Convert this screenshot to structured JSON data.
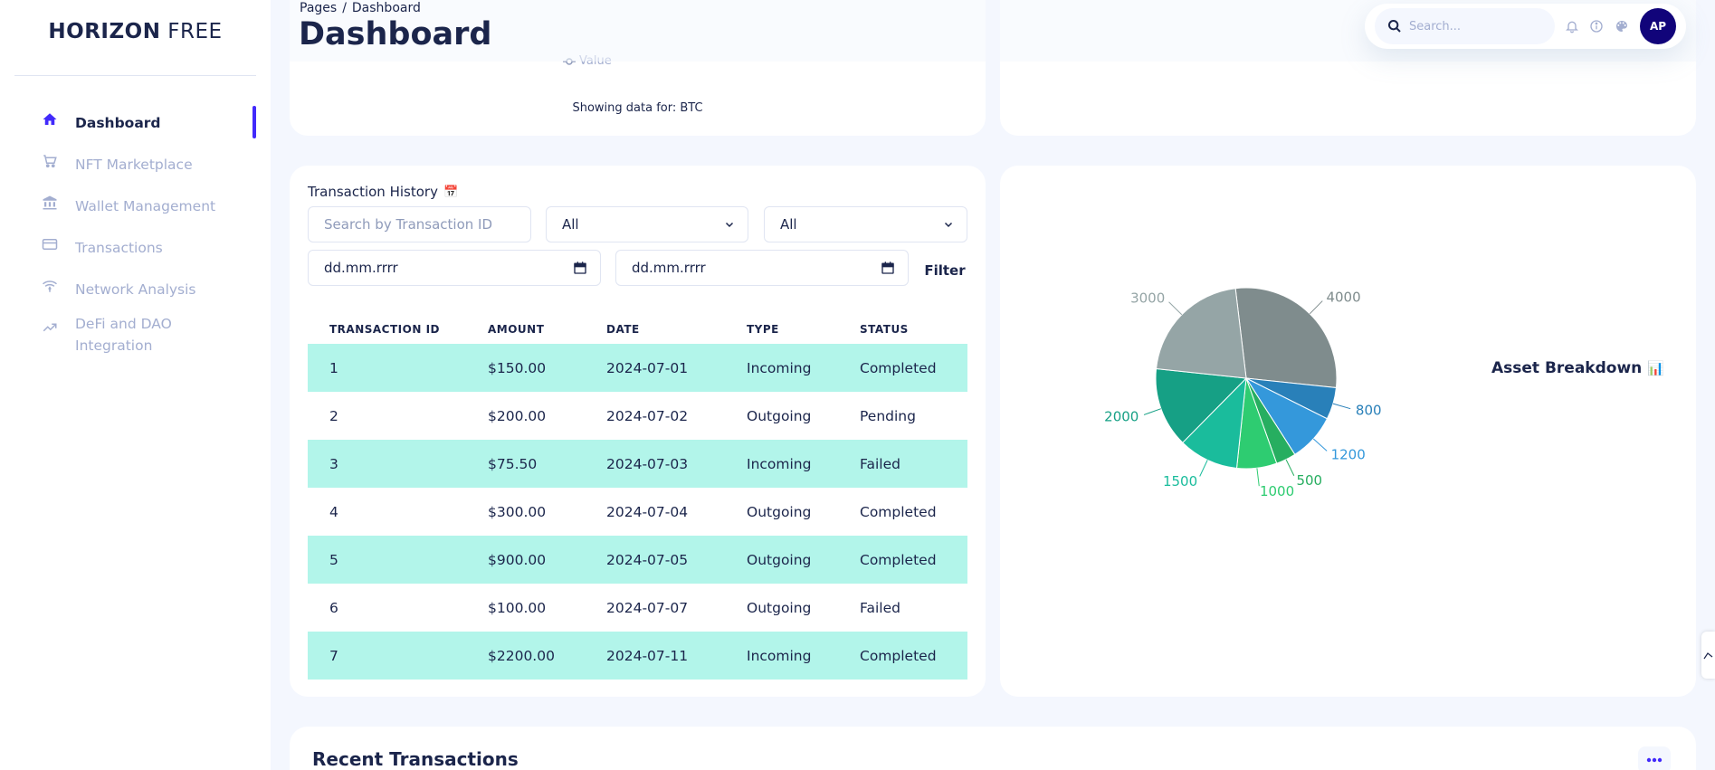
{
  "sidebar": {
    "logo_bold": "HORIZON",
    "logo_light": "FREE",
    "items": [
      {
        "label": "Dashboard",
        "icon": "home-icon",
        "active": true
      },
      {
        "label": "NFT Marketplace",
        "icon": "cart-icon",
        "active": false
      },
      {
        "label": "Wallet Management",
        "icon": "bank-icon",
        "active": false
      },
      {
        "label": "Transactions",
        "icon": "card-icon",
        "active": false
      },
      {
        "label": "Network Analysis",
        "icon": "wifi-icon",
        "active": false
      },
      {
        "label": "DeFi and DAO Integration",
        "icon": "trending-up-icon",
        "active": false
      }
    ]
  },
  "header": {
    "breadcrumb_root": "Pages",
    "breadcrumb_sep": "/",
    "breadcrumb_current": "Dashboard",
    "title": "Dashboard",
    "search_placeholder": "Search...",
    "avatar_initials": "AP"
  },
  "top_left_card": {
    "legend_label": "Value",
    "showing_data": "Showing data for: BTC"
  },
  "transaction_history": {
    "title": "Transaction History",
    "title_emoji": "📅",
    "search_placeholder": "Search by Transaction ID",
    "type_filter": "All",
    "status_filter": "All",
    "date_from_placeholder": "dd.mm.rrrr",
    "date_to_placeholder": "dd.mm.rrrr",
    "filter_label": "Filter",
    "columns": [
      "TRANSACTION ID",
      "AMOUNT",
      "DATE",
      "TYPE",
      "STATUS"
    ],
    "rows": [
      [
        "1",
        "$150.00",
        "2024-07-01",
        "Incoming",
        "Completed"
      ],
      [
        "2",
        "$200.00",
        "2024-07-02",
        "Outgoing",
        "Pending"
      ],
      [
        "3",
        "$75.50",
        "2024-07-03",
        "Incoming",
        "Failed"
      ],
      [
        "4",
        "$300.00",
        "2024-07-04",
        "Outgoing",
        "Completed"
      ],
      [
        "5",
        "$900.00",
        "2024-07-05",
        "Outgoing",
        "Completed"
      ],
      [
        "6",
        "$100.00",
        "2024-07-07",
        "Outgoing",
        "Failed"
      ],
      [
        "7",
        "$2200.00",
        "2024-07-11",
        "Incoming",
        "Completed"
      ]
    ]
  },
  "asset_breakdown": {
    "title": "Asset Breakdown",
    "title_emoji": "📊"
  },
  "chart_data": {
    "type": "pie",
    "values": [
      4000,
      800,
      1200,
      500,
      1000,
      1500,
      2000,
      3000
    ],
    "labels": [
      "4000",
      "800",
      "1200",
      "500",
      "1000",
      "1500",
      "2000",
      "3000"
    ],
    "colors": [
      "#7f8c8d",
      "#2980b9",
      "#3498db",
      "#27ae60",
      "#2ecc71",
      "#1abc9c",
      "#16a085",
      "#95a5a6"
    ]
  },
  "recent_transactions": {
    "title": "Recent Transactions"
  },
  "colors": {
    "brand": "#422afb",
    "navy": "#1b254b",
    "row_highlight": "#b2f5ea",
    "avatar_bg": "#11047a"
  }
}
